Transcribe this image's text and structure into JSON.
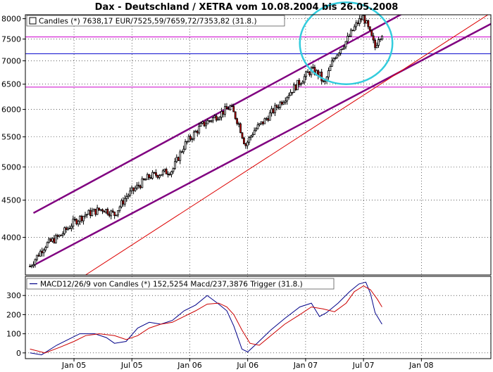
{
  "title": "Dax - Deutschland / XETRA vom 10.08.2004 bis 26.05.2008",
  "chart_data": [
    {
      "type": "candlestick",
      "legend": "Candles (*) 7638,17 EUR/7525,59/7659,72/7353,82 (31.8.)",
      "ylim": [
        3550,
        8100
      ],
      "y_ticks": [
        4000,
        4500,
        5000,
        5500,
        6000,
        6500,
        7000,
        7500,
        8000
      ],
      "x_ticks": [
        "Jan 05",
        "Jul 05",
        "Jan 06",
        "Jul 06",
        "Jan 07",
        "Jul 07",
        "Jan 08"
      ],
      "grid": true,
      "price_path": [
        [
          2004.62,
          3650
        ],
        [
          2004.75,
          3900
        ],
        [
          2004.88,
          4020
        ],
        [
          2005.0,
          4200
        ],
        [
          2005.1,
          4300
        ],
        [
          2005.25,
          4380
        ],
        [
          2005.35,
          4300
        ],
        [
          2005.45,
          4550
        ],
        [
          2005.55,
          4700
        ],
        [
          2005.65,
          4850
        ],
        [
          2005.75,
          4900
        ],
        [
          2005.85,
          4950
        ],
        [
          2005.95,
          5350
        ],
        [
          2006.1,
          5700
        ],
        [
          2006.25,
          5900
        ],
        [
          2006.35,
          6050
        ],
        [
          2006.42,
          5750
        ],
        [
          2006.48,
          5350
        ],
        [
          2006.55,
          5600
        ],
        [
          2006.65,
          5800
        ],
        [
          2006.75,
          6050
        ],
        [
          2006.85,
          6300
        ],
        [
          2006.95,
          6550
        ],
        [
          2007.05,
          6800
        ],
        [
          2007.12,
          6700
        ],
        [
          2007.16,
          6480
        ],
        [
          2007.25,
          7100
        ],
        [
          2007.35,
          7450
        ],
        [
          2007.45,
          7900
        ],
        [
          2007.5,
          8050
        ],
        [
          2007.56,
          7600
        ],
        [
          2007.6,
          7300
        ],
        [
          2007.63,
          7550
        ],
        [
          2007.66,
          7640
        ]
      ],
      "channel_upper": [
        [
          2004.65,
          4320
        ],
        [
          2007.85,
          8150
        ]
      ],
      "channel_lower": [
        [
          2004.65,
          3660
        ],
        [
          2008.6,
          7870
        ]
      ],
      "trend_line": [
        [
          2005.1,
          3550
        ],
        [
          2008.6,
          8150
        ]
      ],
      "h_lines": [
        {
          "y": 7550,
          "color": "#cc00cc"
        },
        {
          "y": 7160,
          "color": "#0000cc"
        },
        {
          "y": 6440,
          "color": "#cc00cc"
        }
      ],
      "highlight_ellipse": {
        "x": 2007.35,
        "y": 7400,
        "rx_years": 0.4,
        "ry_value": 900
      }
    },
    {
      "type": "line",
      "legend": "MACD12/26/9 von Candles (*) 152,5254 Macd/237,3876 Trigger (31.8.)",
      "ylim": [
        -30,
        400
      ],
      "y_ticks": [
        0,
        100,
        200,
        300
      ],
      "x_ticks": [
        "Jan 05",
        "Jul 05",
        "Jan 06",
        "Jul 06",
        "Jan 07",
        "Jul 07",
        "Jan 08"
      ],
      "series": [
        {
          "name": "Macd",
          "color": "#000088",
          "x": [
            2004.62,
            2004.72,
            2004.85,
            2004.95,
            2005.05,
            2005.18,
            2005.28,
            2005.35,
            2005.45,
            2005.55,
            2005.65,
            2005.75,
            2005.85,
            2005.95,
            2006.05,
            2006.15,
            2006.25,
            2006.32,
            2006.38,
            2006.45,
            2006.5,
            2006.58,
            2006.7,
            2006.82,
            2006.95,
            2007.05,
            2007.12,
            2007.18,
            2007.28,
            2007.38,
            2007.46,
            2007.52,
            2007.56,
            2007.6,
            2007.66
          ],
          "y": [
            0,
            -10,
            40,
            70,
            100,
            100,
            80,
            50,
            60,
            130,
            160,
            150,
            170,
            220,
            250,
            300,
            255,
            220,
            140,
            20,
            5,
            50,
            120,
            180,
            240,
            260,
            190,
            210,
            260,
            320,
            360,
            370,
            310,
            210,
            150
          ]
        },
        {
          "name": "Trigger",
          "color": "#cc0000",
          "x": [
            2004.62,
            2004.75,
            2004.88,
            2005.0,
            2005.1,
            2005.22,
            2005.35,
            2005.45,
            2005.55,
            2005.65,
            2005.75,
            2005.85,
            2005.95,
            2006.05,
            2006.15,
            2006.25,
            2006.32,
            2006.38,
            2006.45,
            2006.52,
            2006.6,
            2006.7,
            2006.82,
            2006.95,
            2007.05,
            2007.15,
            2007.25,
            2007.35,
            2007.42,
            2007.5,
            2007.56,
            2007.62,
            2007.66
          ],
          "y": [
            20,
            0,
            30,
            60,
            90,
            100,
            90,
            70,
            90,
            130,
            150,
            160,
            190,
            220,
            255,
            260,
            240,
            200,
            120,
            50,
            40,
            90,
            150,
            200,
            240,
            230,
            215,
            260,
            320,
            350,
            330,
            280,
            240
          ]
        }
      ]
    }
  ]
}
